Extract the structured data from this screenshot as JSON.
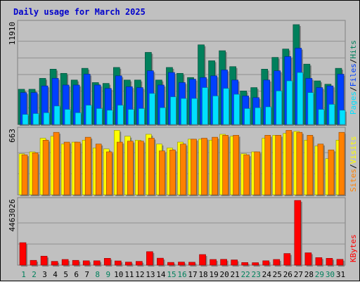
{
  "title": "Daily usage for March 2025",
  "colors": {
    "title": "#0000cc",
    "hits": "#00805c",
    "files": "#0040ff",
    "pages": "#00e0ff",
    "visits": "#ffff00",
    "sites": "#ff8000",
    "kbytes": "#ff0000",
    "weekend_day": "#00805c",
    "weekday": "#000000"
  },
  "axis_labels": {
    "top_max": "11910",
    "mid_max": "663",
    "bottom_max": "4463026"
  },
  "legend": {
    "pages": "Pages",
    "files": "Files",
    "hits": "Hits",
    "sep": "/",
    "sites": "Sites",
    "visits": "Visits",
    "kbytes": "KBytes"
  },
  "chart_data": [
    {
      "type": "bar",
      "title": "Daily usage for March 2025",
      "categories": [
        "1",
        "2",
        "3",
        "4",
        "5",
        "6",
        "7",
        "8",
        "9",
        "10",
        "11",
        "12",
        "13",
        "14",
        "15",
        "16",
        "17",
        "18",
        "19",
        "20",
        "21",
        "22",
        "23",
        "24",
        "25",
        "26",
        "27",
        "28",
        "29",
        "30",
        "31"
      ],
      "ylim": [
        0,
        11910
      ],
      "series": [
        {
          "name": "Hits",
          "values": [
            4200,
            4200,
            5500,
            6600,
            6100,
            5300,
            6700,
            5000,
            4900,
            6800,
            5300,
            5300,
            8600,
            5300,
            6800,
            6100,
            5600,
            9500,
            7600,
            8800,
            6900,
            4000,
            4400,
            6600,
            8000,
            9000,
            11910,
            7200,
            5200,
            4800,
            6700
          ]
        },
        {
          "name": "Files",
          "values": [
            3800,
            3800,
            4600,
            5500,
            4700,
            4700,
            6000,
            4700,
            4300,
            5800,
            4500,
            4400,
            6400,
            4700,
            6200,
            5000,
            5400,
            5600,
            5800,
            6500,
            5300,
            3400,
            3200,
            5300,
            6400,
            8100,
            9100,
            5500,
            4400,
            4600,
            6000
          ]
        },
        {
          "name": "Pages",
          "values": [
            1200,
            1300,
            1400,
            2200,
            1800,
            1400,
            2300,
            1900,
            1700,
            2300,
            1800,
            1900,
            3700,
            2000,
            3300,
            3100,
            3100,
            4400,
            3400,
            4300,
            3600,
            1900,
            2000,
            2100,
            4000,
            5200,
            6200,
            3800,
            1800,
            2400,
            1700
          ]
        }
      ]
    },
    {
      "type": "bar",
      "categories": [
        "1",
        "2",
        "3",
        "4",
        "5",
        "6",
        "7",
        "8",
        "9",
        "10",
        "11",
        "12",
        "13",
        "14",
        "15",
        "16",
        "17",
        "18",
        "19",
        "20",
        "21",
        "22",
        "23",
        "24",
        "25",
        "26",
        "27",
        "28",
        "29",
        "30",
        "31"
      ],
      "ylim": [
        0,
        663
      ],
      "series": [
        {
          "name": "Visits",
          "values": [
            420,
            440,
            580,
            600,
            520,
            540,
            560,
            480,
            470,
            660,
            600,
            560,
            620,
            520,
            480,
            540,
            570,
            570,
            560,
            620,
            600,
            420,
            440,
            580,
            610,
            630,
            650,
            560,
            500,
            370,
            560
          ]
        },
        {
          "name": "Sites",
          "values": [
            410,
            430,
            560,
            640,
            540,
            540,
            590,
            520,
            440,
            540,
            550,
            550,
            580,
            450,
            460,
            520,
            570,
            580,
            590,
            610,
            610,
            410,
            440,
            610,
            610,
            660,
            640,
            610,
            520,
            460,
            640
          ]
        }
      ]
    },
    {
      "type": "bar",
      "categories": [
        "1",
        "2",
        "3",
        "4",
        "5",
        "6",
        "7",
        "8",
        "9",
        "10",
        "11",
        "12",
        "13",
        "14",
        "15",
        "16",
        "17",
        "18",
        "19",
        "20",
        "21",
        "22",
        "23",
        "24",
        "25",
        "26",
        "27",
        "28",
        "29",
        "30",
        "31"
      ],
      "ylim": [
        0,
        4463026
      ],
      "series": [
        {
          "name": "KBytes",
          "values": [
            1550000,
            330000,
            620000,
            260000,
            390000,
            330000,
            300000,
            300000,
            470000,
            290000,
            210000,
            260000,
            930000,
            480000,
            190000,
            210000,
            200000,
            730000,
            390000,
            400000,
            360000,
            180000,
            170000,
            300000,
            390000,
            800000,
            4463026,
            850000,
            520000,
            470000,
            400000
          ]
        }
      ]
    }
  ]
}
